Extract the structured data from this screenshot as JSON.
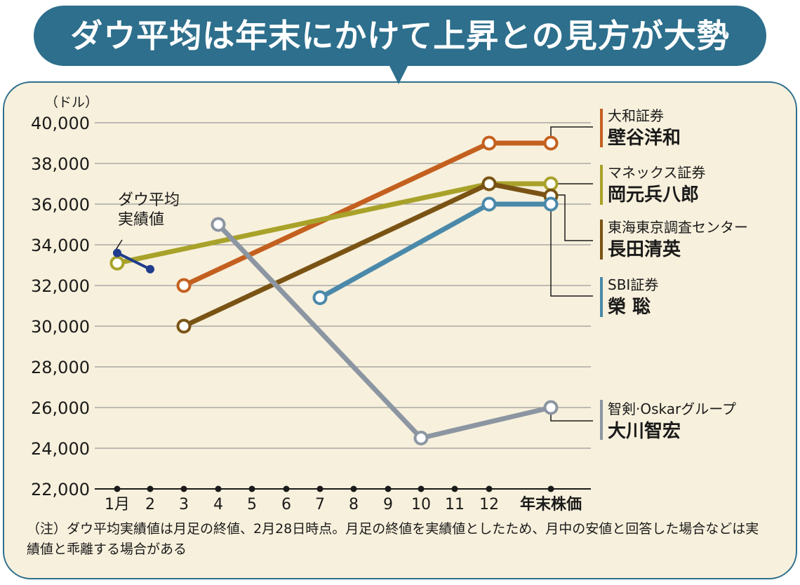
{
  "header": {
    "title": "ダウ平均は年末にかけて上昇との見方が大勢"
  },
  "note": "（注）ダウ平均実績値は月足の終値、2月28日時点。月足の終値を実績値としたため、月中の安値と回答した場合などは実績値と乖離する場合がある",
  "chart_data": {
    "type": "line",
    "unit_label": "（ドル）",
    "ylim": [
      22000,
      40000
    ],
    "y_ticks": [
      22000,
      24000,
      26000,
      28000,
      30000,
      32000,
      34000,
      36000,
      38000,
      40000
    ],
    "y_tick_labels": [
      "22,000",
      "24,000",
      "26,000",
      "28,000",
      "30,000",
      "32,000",
      "34,000",
      "36,000",
      "38,000",
      "40,000"
    ],
    "categories": [
      "1月",
      "2",
      "3",
      "4",
      "5",
      "6",
      "7",
      "8",
      "9",
      "10",
      "11",
      "12",
      "年末株価"
    ],
    "grid": true,
    "annotation": [
      "ダウ平均",
      "実績値"
    ],
    "series": [
      {
        "org": "大和証券",
        "name": "壁谷洋和",
        "color": "#c4601f",
        "points": [
          [
            "3",
            32000
          ],
          [
            "12",
            39000
          ],
          [
            "年末株価",
            39000
          ]
        ]
      },
      {
        "org": "マネックス証券",
        "name": "岡元兵八郎",
        "color": "#a8a22a",
        "points": [
          [
            "1月",
            33100
          ],
          [
            "12",
            37000
          ],
          [
            "年末株価",
            37000
          ]
        ]
      },
      {
        "org": "東海東京調査センター",
        "name": "長田清英",
        "color": "#7a5314",
        "points": [
          [
            "3",
            30000
          ],
          [
            "12",
            37000
          ],
          [
            "年末株価",
            36400
          ]
        ]
      },
      {
        "org": "SBI証券",
        "name": "榮 聡",
        "color": "#4a89aa",
        "points": [
          [
            "7",
            31400
          ],
          [
            "12",
            36000
          ],
          [
            "年末株価",
            36000
          ]
        ]
      },
      {
        "org": "智剣·Oskarグループ",
        "name": "大川智宏",
        "color": "#8c96a2",
        "points": [
          [
            "4",
            35000
          ],
          [
            "10",
            24500
          ],
          [
            "年末株価",
            26000
          ]
        ]
      }
    ],
    "actual": {
      "name": "ダウ平均実績値",
      "color": "#1f3d8c",
      "points": [
        [
          "1月",
          33600
        ],
        [
          "2",
          32800
        ]
      ]
    }
  },
  "colors": {
    "banner": "#2d6f8c",
    "panel": "#f7f0dc"
  }
}
